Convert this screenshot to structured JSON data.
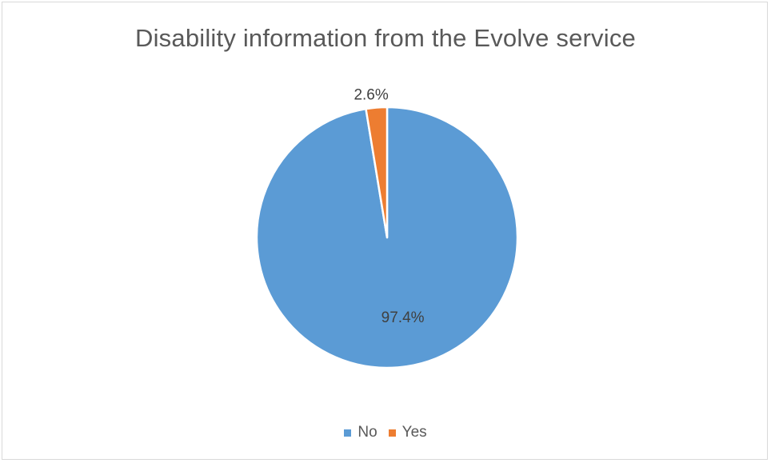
{
  "chart_data": {
    "type": "pie",
    "title": "Disability information from the Evolve service",
    "categories": [
      "No",
      "Yes"
    ],
    "values": [
      97.4,
      2.6
    ],
    "value_labels": [
      "97.4%",
      "2.6%"
    ],
    "colors": [
      "#5b9bd5",
      "#ed7d31"
    ],
    "legend_position": "bottom"
  }
}
